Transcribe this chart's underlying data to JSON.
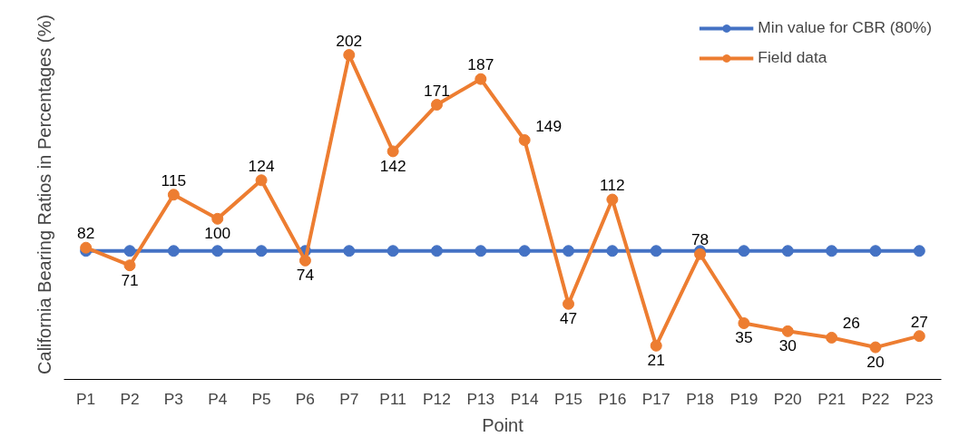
{
  "chart_data": {
    "type": "line",
    "xlabel": "Point",
    "ylabel": "California Bearing Ratios in Percentages (%)",
    "categories": [
      "P1",
      "P2",
      "P3",
      "P4",
      "P5",
      "P6",
      "P7",
      "P11",
      "P12",
      "P13",
      "P14",
      "P15",
      "P16",
      "P17",
      "P18",
      "P19",
      "P20",
      "P21",
      "P22",
      "P23"
    ],
    "series": [
      {
        "name": "Min value for CBR (80%)",
        "color": "#4472c4",
        "values": [
          80,
          80,
          80,
          80,
          80,
          80,
          80,
          80,
          80,
          80,
          80,
          80,
          80,
          80,
          80,
          80,
          80,
          80,
          80,
          80
        ]
      },
      {
        "name": "Field data",
        "color": "#ed7d31",
        "values": [
          82,
          71,
          115,
          100,
          124,
          74,
          202,
          142,
          171,
          187,
          149,
          47,
          112,
          21,
          78,
          35,
          30,
          26,
          20,
          27
        ],
        "data_labels": true
      }
    ],
    "marker": "circle",
    "legend": "top right",
    "grid": false
  }
}
